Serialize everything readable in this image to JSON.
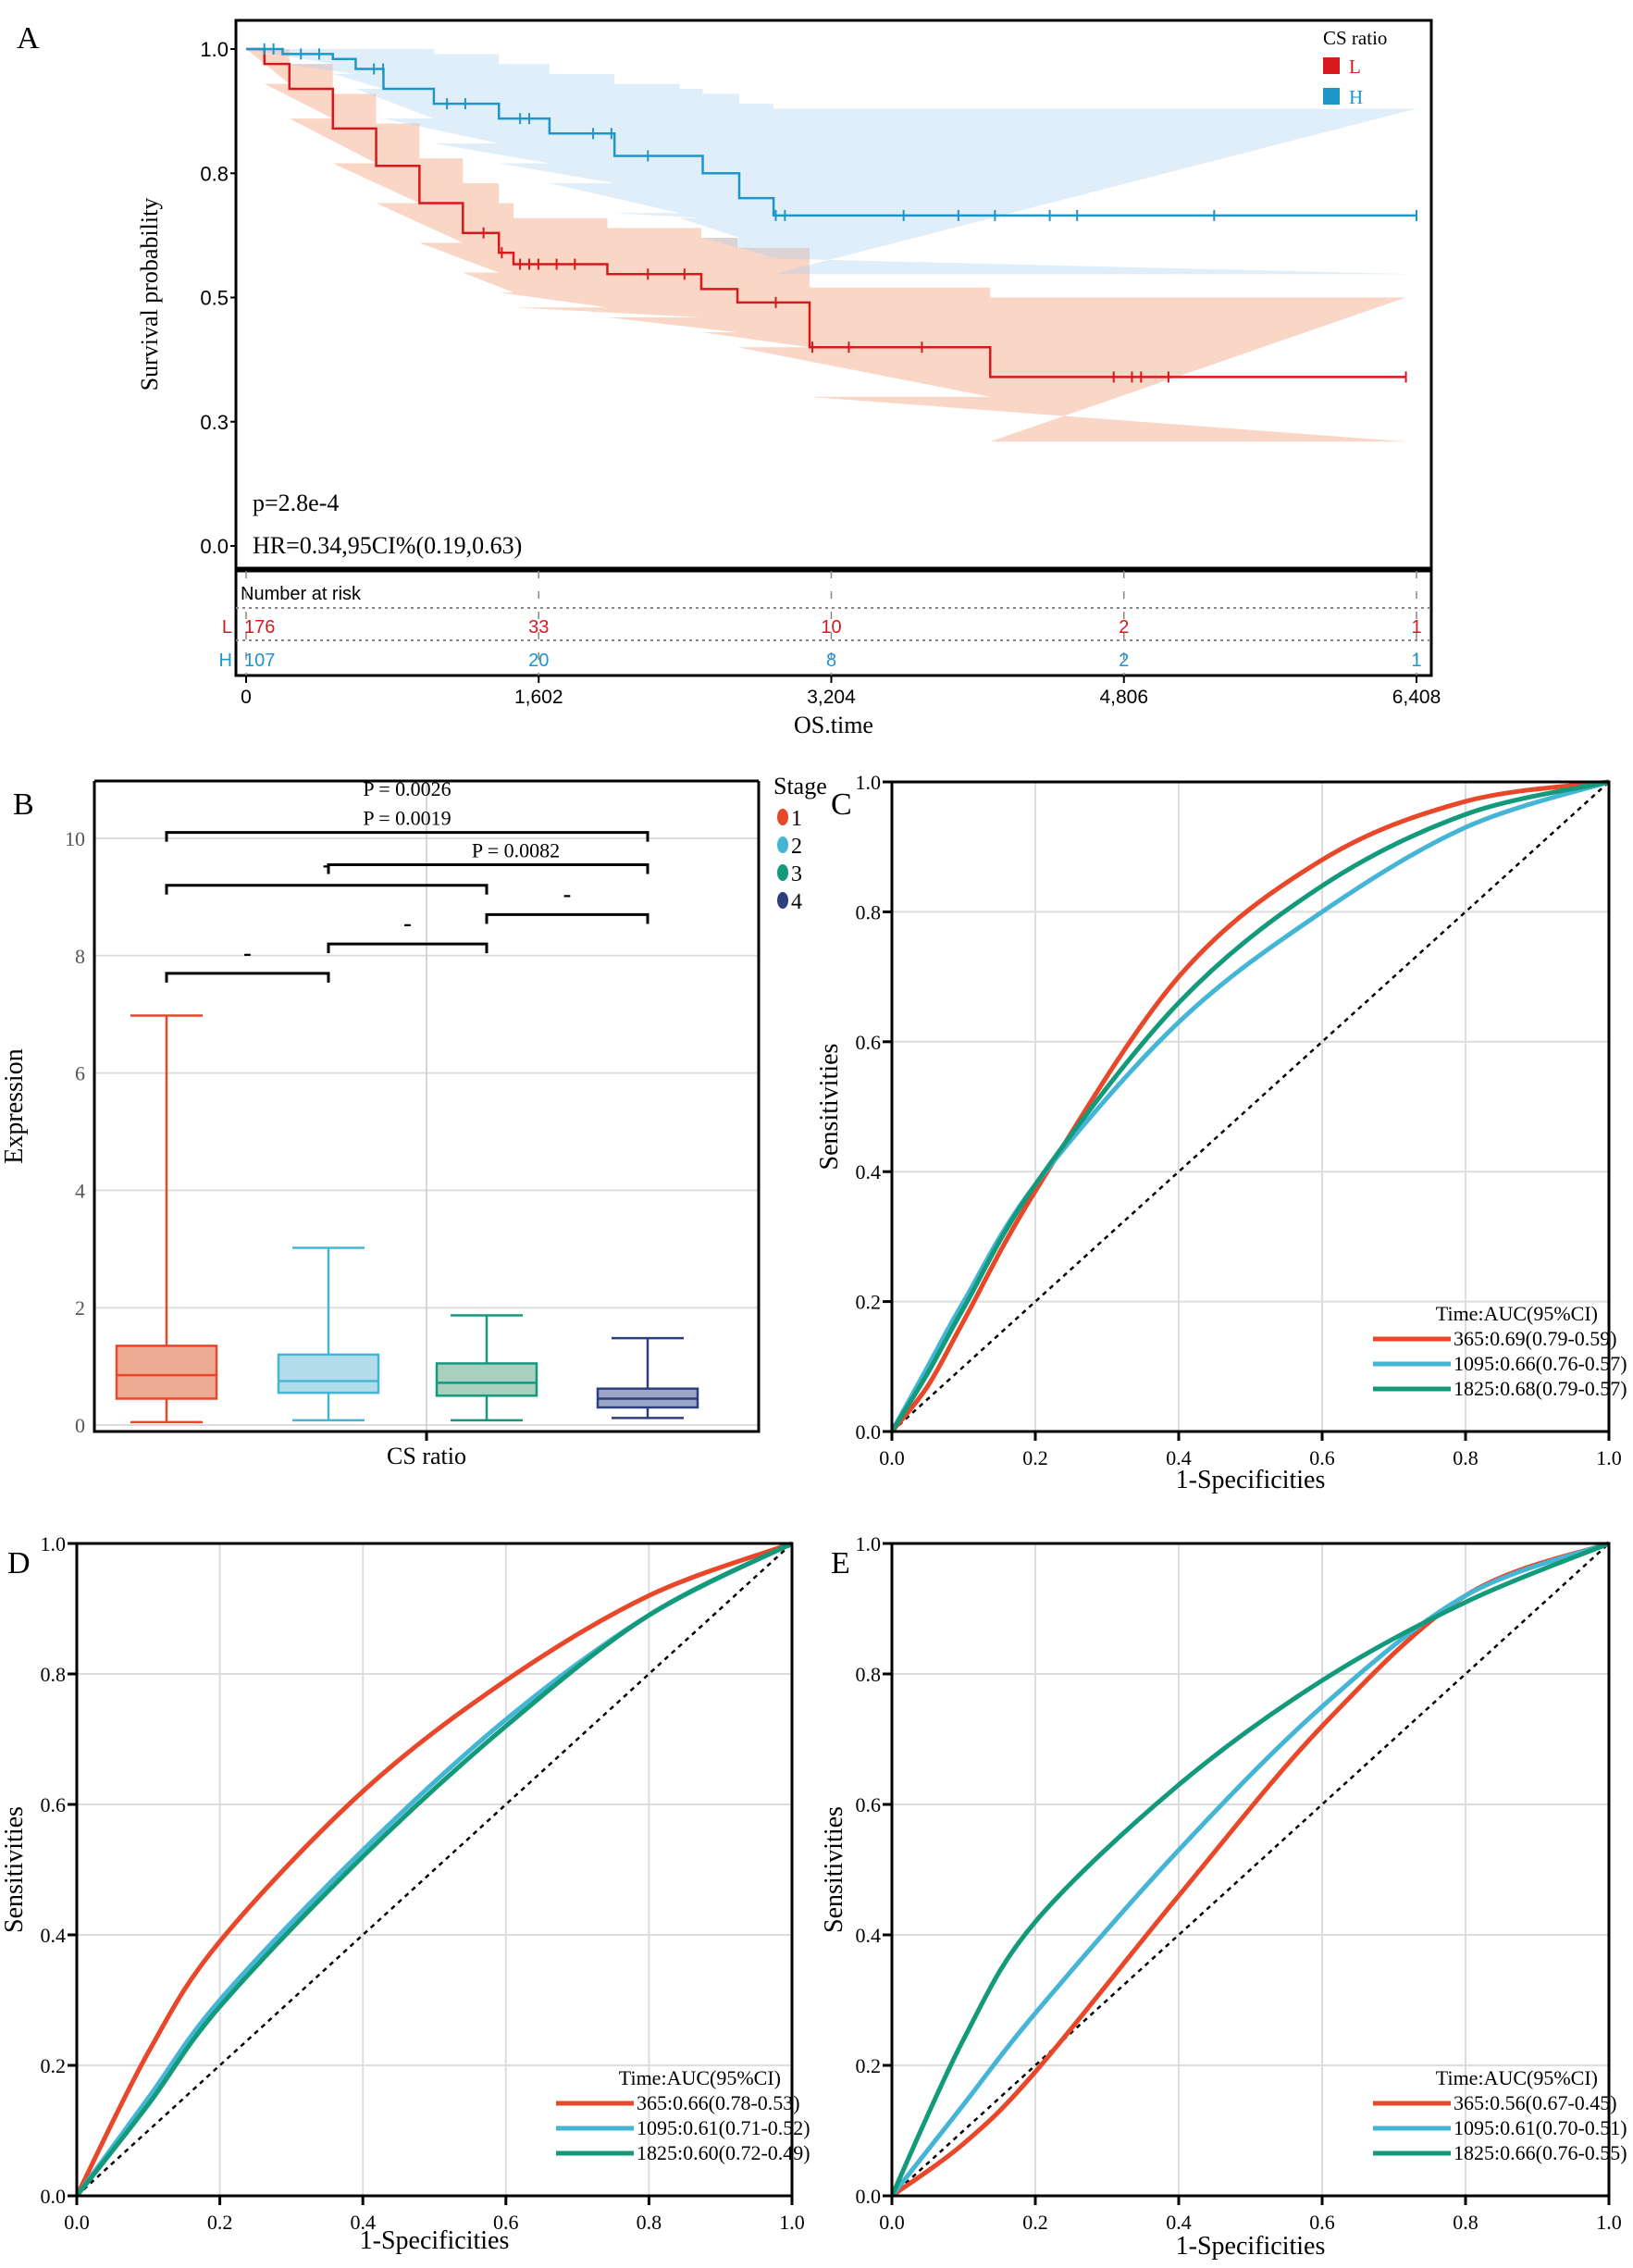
{
  "panel_letters": [
    "A",
    "B",
    "C",
    "D",
    "E"
  ],
  "chart_data": [
    {
      "type": "line",
      "subtype": "kaplan-meier",
      "panel": "A",
      "xlabel": "OS.time",
      "ylabel": "Survival probability",
      "xlim": [
        0,
        6408
      ],
      "ylim": [
        0,
        1
      ],
      "x_ticks": [
        0,
        1602,
        3204,
        4806,
        6408
      ],
      "x_tick_labels": [
        "0",
        "1,602",
        "3,204",
        "4,806",
        "6,408"
      ],
      "y_ticks": [
        0,
        0.25,
        0.5,
        0.75,
        1.0
      ],
      "y_tick_labels": [
        "0.0",
        "0.3",
        "0.5",
        "0.8",
        "1.0"
      ],
      "legend_title": "CS ratio",
      "legend_position": "top-right",
      "p_text": "p=2.8e-4",
      "hr_text": "HR=0.34,95CI%(0.19,0.63)",
      "series": [
        {
          "name": "L",
          "color": "#d7191c",
          "band_color": "#f4a582",
          "time": [
            0,
            100,
            237,
            475,
            712,
            949,
            1187,
            1384,
            1464,
            1978,
            2492,
            2690,
            3085,
            4074
          ],
          "surv": [
            1,
            0.97,
            0.92,
            0.84,
            0.765,
            0.69,
            0.63,
            0.59,
            0.567,
            0.547,
            0.517,
            0.49,
            0.4,
            0.34
          ],
          "upper": [
            1,
            1,
            0.97,
            0.91,
            0.85,
            0.78,
            0.73,
            0.69,
            0.66,
            0.64,
            0.62,
            0.6,
            0.52,
            0.5
          ],
          "lower": [
            1,
            0.93,
            0.86,
            0.77,
            0.69,
            0.61,
            0.55,
            0.51,
            0.48,
            0.46,
            0.43,
            0.4,
            0.3,
            0.21
          ],
          "end_time": 6350,
          "censor": [
            1300,
            1400,
            1500,
            1550,
            1600,
            1700,
            1800,
            2200,
            2400,
            2900,
            3100,
            3300,
            3700,
            4750,
            4850,
            4900,
            5050,
            6350
          ]
        },
        {
          "name": "H",
          "color": "#1f96c9",
          "band_color": "#a6cdee",
          "time": [
            0,
            200,
            475,
            600,
            752,
            1028,
            1384,
            1661,
            2017,
            2373,
            2500,
            2700,
            2888
          ],
          "surv": [
            1,
            0.99,
            0.98,
            0.96,
            0.92,
            0.89,
            0.86,
            0.83,
            0.785,
            0.785,
            0.75,
            0.7,
            0.665
          ],
          "upper": [
            1,
            1,
            1,
            1,
            1,
            0.99,
            0.97,
            0.95,
            0.93,
            0.92,
            0.91,
            0.89,
            0.88
          ],
          "lower": [
            1,
            0.97,
            0.95,
            0.92,
            0.86,
            0.81,
            0.77,
            0.73,
            0.67,
            0.66,
            0.62,
            0.58,
            0.547
          ],
          "end_time": 6408,
          "censor": [
            100,
            150,
            300,
            400,
            700,
            750,
            1100,
            1200,
            1500,
            1550,
            1900,
            2000,
            2200,
            2900,
            2950,
            3600,
            3900,
            4100,
            4400,
            4550,
            5300,
            6408
          ]
        }
      ],
      "risk_table": {
        "title": "Number at risk",
        "rows": [
          {
            "label": "L",
            "color": "#d7191c",
            "values": [
              "176",
              "33",
              "10",
              "2",
              "1"
            ]
          },
          {
            "label": "H",
            "color": "#1f96c9",
            "values": [
              "107",
              "20",
              "8",
              "2",
              "1"
            ]
          }
        ]
      }
    },
    {
      "type": "box",
      "panel": "B",
      "xlabel": "CS ratio",
      "ylabel": "Expression",
      "ylim": [
        0,
        11
      ],
      "y_ticks": [
        0,
        2,
        4,
        6,
        8,
        10
      ],
      "y_tick_labels": [
        "0",
        "2",
        "4",
        "6",
        "8",
        "10"
      ],
      "legend_title": "Stage",
      "legend_position": "right",
      "groups": [
        {
          "name": "1",
          "color": "#e8472a",
          "fill": "#eeab93",
          "min": 0.05,
          "q1": 0.45,
          "median": 0.85,
          "q3": 1.35,
          "max": 6.98
        },
        {
          "name": "2",
          "color": "#45b5d6",
          "fill": "#b3dcea",
          "min": 0.08,
          "q1": 0.55,
          "median": 0.75,
          "q3": 1.2,
          "max": 3.02
        },
        {
          "name": "3",
          "color": "#139a7a",
          "fill": "#a9cfbf",
          "min": 0.08,
          "q1": 0.5,
          "median": 0.72,
          "q3": 1.05,
          "max": 1.87
        },
        {
          "name": "4",
          "color": "#2e3f7e",
          "fill": "#9ea6c8",
          "min": 0.12,
          "q1": 0.3,
          "median": 0.45,
          "q3": 0.62,
          "max": 1.48
        }
      ],
      "comparisons": [
        {
          "from": 0,
          "to": 1,
          "y": 7.7,
          "label": "-"
        },
        {
          "from": 1,
          "to": 2,
          "y": 8.2,
          "label": "-"
        },
        {
          "from": 2,
          "to": 3,
          "y": 8.7,
          "label": "-"
        },
        {
          "from": 0,
          "to": 2,
          "y": 9.2,
          "label": "-"
        },
        {
          "from": 1,
          "to": 3,
          "y": 9.55,
          "label": "P = 0.0082"
        },
        {
          "from": 0,
          "to": 3,
          "y": 10.1,
          "label": "P = 0.0019"
        },
        {
          "from": 0,
          "to": 3,
          "y": 10.6,
          "label": "P = 0.0026",
          "no_bracket": true
        }
      ]
    },
    {
      "type": "line",
      "subtype": "roc",
      "panel": "C",
      "xlabel": "1-Specificities",
      "ylabel": "Sensitivities",
      "xlim": [
        0,
        1
      ],
      "ylim": [
        0,
        1
      ],
      "ticks": [
        "0.0",
        "0.2",
        "0.4",
        "0.6",
        "0.8",
        "1.0"
      ],
      "legend_title": "Time:AUC(95%CI)",
      "legend_position": "bottom-right",
      "series": [
        {
          "name": "365:0.69(0.79-0.59)",
          "color": "#e8472a",
          "x": [
            0,
            0.05,
            0.1,
            0.2,
            0.4,
            0.6,
            0.8,
            1
          ],
          "y": [
            0,
            0.07,
            0.17,
            0.37,
            0.7,
            0.88,
            0.97,
            1
          ]
        },
        {
          "name": "1095:0.66(0.76-0.57)",
          "color": "#45b5d6",
          "x": [
            0,
            0.05,
            0.1,
            0.2,
            0.4,
            0.6,
            0.8,
            1
          ],
          "y": [
            0,
            0.1,
            0.2,
            0.38,
            0.63,
            0.8,
            0.93,
            1
          ]
        },
        {
          "name": "1825:0.68(0.79-0.57)",
          "color": "#139a7a",
          "x": [
            0,
            0.05,
            0.1,
            0.2,
            0.4,
            0.6,
            0.8,
            1
          ],
          "y": [
            0,
            0.09,
            0.19,
            0.38,
            0.66,
            0.84,
            0.95,
            1
          ]
        }
      ]
    },
    {
      "type": "line",
      "subtype": "roc",
      "panel": "D",
      "xlabel": "1-Specificities",
      "ylabel": "Sensitivities",
      "xlim": [
        0,
        1
      ],
      "ylim": [
        0,
        1
      ],
      "ticks": [
        "0.0",
        "0.2",
        "0.4",
        "0.6",
        "0.8",
        "1.0"
      ],
      "legend_title": "Time:AUC(95%CI)",
      "legend_position": "bottom-right",
      "series": [
        {
          "name": "365:0.66(0.78-0.53)",
          "color": "#e8472a",
          "x": [
            0,
            0.1,
            0.2,
            0.4,
            0.6,
            0.8,
            1
          ],
          "y": [
            0,
            0.22,
            0.39,
            0.62,
            0.79,
            0.92,
            1
          ]
        },
        {
          "name": "1095:0.61(0.71-0.52)",
          "color": "#45b5d6",
          "x": [
            0,
            0.1,
            0.2,
            0.4,
            0.6,
            0.8,
            1
          ],
          "y": [
            0,
            0.15,
            0.3,
            0.53,
            0.73,
            0.89,
            1
          ]
        },
        {
          "name": "1825:0.60(0.72-0.49)",
          "color": "#139a7a",
          "x": [
            0,
            0.1,
            0.2,
            0.4,
            0.6,
            0.8,
            1
          ],
          "y": [
            0,
            0.14,
            0.29,
            0.52,
            0.72,
            0.89,
            1
          ]
        }
      ]
    },
    {
      "type": "line",
      "subtype": "roc",
      "panel": "E",
      "xlabel": "1-Specificities",
      "ylabel": "Sensitivities",
      "xlim": [
        0,
        1
      ],
      "ylim": [
        0,
        1
      ],
      "ticks": [
        "0.0",
        "0.2",
        "0.4",
        "0.6",
        "0.8",
        "1.0"
      ],
      "legend_title": "Time:AUC(95%CI)",
      "legend_position": "bottom-right",
      "series": [
        {
          "name": "365:0.56(0.67-0.45)",
          "color": "#e8472a",
          "x": [
            0,
            0.1,
            0.2,
            0.4,
            0.6,
            0.8,
            1
          ],
          "y": [
            0,
            0.08,
            0.19,
            0.46,
            0.72,
            0.92,
            1
          ]
        },
        {
          "name": "1095:0.61(0.70-0.51)",
          "color": "#45b5d6",
          "x": [
            0,
            0.1,
            0.2,
            0.4,
            0.6,
            0.8,
            1
          ],
          "y": [
            0,
            0.14,
            0.28,
            0.53,
            0.75,
            0.92,
            1
          ]
        },
        {
          "name": "1825:0.66(0.76-0.55)",
          "color": "#139a7a",
          "x": [
            0,
            0.1,
            0.2,
            0.4,
            0.6,
            0.8,
            1
          ],
          "y": [
            0,
            0.24,
            0.42,
            0.63,
            0.79,
            0.91,
            1
          ]
        }
      ]
    }
  ]
}
